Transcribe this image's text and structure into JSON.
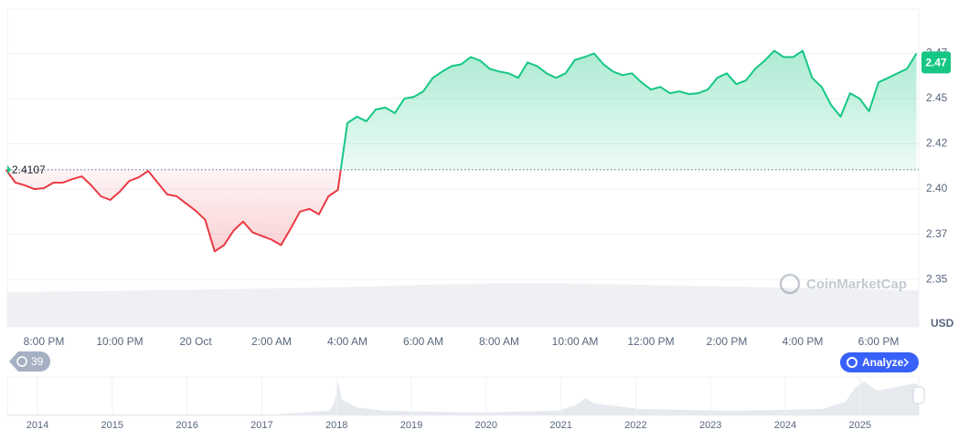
{
  "chart_data": {
    "type": "line",
    "categories": [
      null,
      null,
      null,
      null,
      "8:00 PM",
      null,
      null,
      null,
      null,
      null,
      null,
      null,
      "10:00 PM",
      null,
      null,
      null,
      null,
      null,
      null,
      null,
      "20 Oct",
      null,
      null,
      null,
      null,
      null,
      null,
      null,
      "2:00 AM",
      null,
      null,
      null,
      null,
      null,
      null,
      null,
      "4:00 AM",
      null,
      null,
      null,
      null,
      null,
      null,
      null,
      "6:00 AM",
      null,
      null,
      null,
      null,
      null,
      null,
      null,
      "8:00 AM",
      null,
      null,
      null,
      null,
      null,
      null,
      null,
      "10:00 AM",
      null,
      null,
      null,
      null,
      null,
      null,
      null,
      "12:00 PM",
      null,
      null,
      null,
      null,
      null,
      null,
      null,
      "2:00 PM",
      null,
      null,
      null,
      null,
      null,
      null,
      null,
      "4:00 PM",
      null,
      null,
      null,
      null,
      null,
      null,
      null,
      "6:00 PM",
      null,
      null,
      null,
      null
    ],
    "values": [
      2.4107,
      2.4035,
      2.402,
      2.4,
      2.4005,
      2.4035,
      2.4035,
      2.4055,
      2.407,
      2.402,
      2.396,
      2.394,
      2.3985,
      2.4045,
      2.4065,
      2.41,
      2.4035,
      2.397,
      2.396,
      2.392,
      2.388,
      2.383,
      2.3655,
      2.369,
      2.377,
      2.382,
      2.376,
      2.374,
      2.372,
      2.369,
      2.378,
      2.3875,
      2.389,
      2.386,
      2.396,
      2.3995,
      2.4365,
      2.44,
      2.4375,
      2.444,
      2.445,
      2.442,
      2.45,
      2.451,
      2.454,
      2.4615,
      2.465,
      2.468,
      2.469,
      2.473,
      2.471,
      2.4665,
      2.465,
      2.464,
      2.4615,
      2.47,
      2.468,
      2.464,
      2.4615,
      2.464,
      2.4715,
      2.473,
      2.475,
      2.469,
      2.465,
      2.463,
      2.464,
      2.459,
      2.455,
      2.4565,
      2.453,
      2.454,
      2.4525,
      2.453,
      2.455,
      2.4615,
      2.464,
      2.458,
      2.46,
      2.4665,
      2.471,
      2.4765,
      2.473,
      2.473,
      2.4765,
      2.4615,
      2.4565,
      2.4465,
      2.44,
      2.453,
      2.45,
      2.443,
      2.459,
      2.4615,
      2.464,
      2.4665,
      2.475
    ],
    "baseline": 2.4107,
    "current_price": 2.47,
    "colors": {
      "up": "#16c784",
      "down": "#ea3943"
    },
    "ylim": [
      2.3238,
      2.4995
    ],
    "yticks": [
      2.35,
      {
        "value": 2.375,
        "label": "2.37"
      },
      {
        "value": 2.4,
        "label": "2.40"
      },
      {
        "value": 2.425,
        "label": "2.42"
      },
      {
        "value": 2.45,
        "label": "2.45"
      },
      {
        "value": 2.475,
        "label": "2.47"
      }
    ],
    "grid": true,
    "currency": "USD",
    "watermark": "CoinMarketCap",
    "badge": "39",
    "button": "Analyze",
    "navigator_years": [
      "2014",
      "2015",
      "2016",
      "2017",
      "2018",
      "2019",
      "2020",
      "2021",
      "2022",
      "2023",
      "2024",
      "2025"
    ]
  }
}
